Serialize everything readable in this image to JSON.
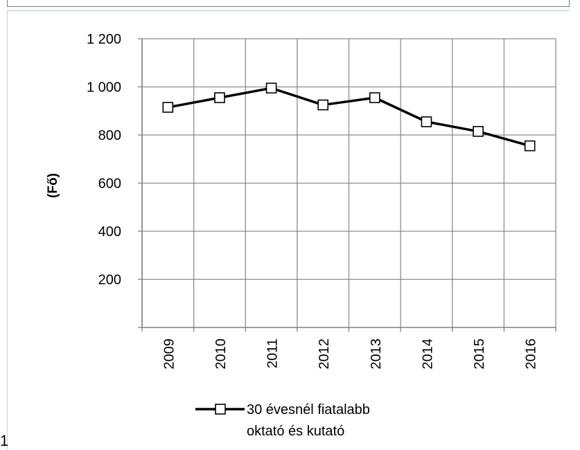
{
  "page_number": "1",
  "chart_data": {
    "type": "line",
    "ylabel": "(Fő)",
    "xlabel": "",
    "ylim": [
      0,
      1200
    ],
    "yticks": [
      200,
      400,
      600,
      800,
      1000,
      1200
    ],
    "ytick_labels": [
      "200",
      "400",
      "600",
      "800",
      "1 000",
      "1 200"
    ],
    "categories": [
      "2009",
      "2010",
      "2011",
      "2012",
      "2013",
      "2014",
      "2015",
      "2016"
    ],
    "series": [
      {
        "name": "30 évesnél fiatalabb oktató és kutató",
        "values": [
          915,
          955,
          995,
          925,
          955,
          855,
          815,
          755
        ],
        "color": "#000000",
        "marker": "open-square"
      }
    ],
    "legend": {
      "position": "bottom",
      "lines": [
        "30 évesnél fiatalabb",
        "oktató és kutató"
      ]
    },
    "grid": true
  }
}
